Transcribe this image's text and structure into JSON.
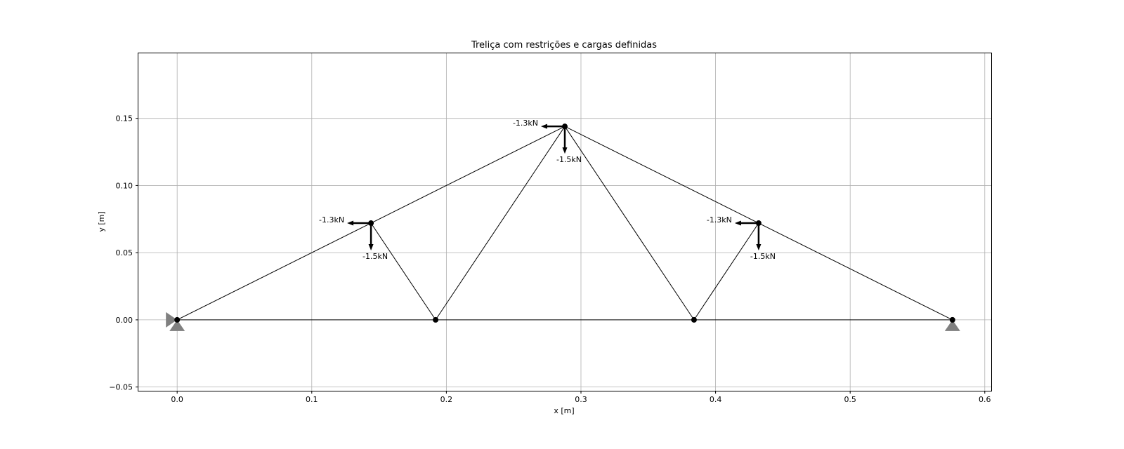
{
  "chart_data": {
    "type": "scatter",
    "title": "Treliça com restrições e cargas definidas",
    "xlabel": "x [m]",
    "ylabel": "y [m]",
    "xlim": [
      -0.0288,
      0.6048
    ],
    "ylim": [
      -0.0528,
      0.1984
    ],
    "grid": true,
    "xticks": [
      0.0,
      0.1,
      0.2,
      0.3,
      0.4,
      0.5,
      0.6
    ],
    "xtick_labels": [
      "0.0",
      "0.1",
      "0.2",
      "0.3",
      "0.4",
      "0.5",
      "0.6"
    ],
    "yticks": [
      -0.05,
      0.0,
      0.05,
      0.1,
      0.15
    ],
    "ytick_labels": [
      "−0.05",
      "0.00",
      "0.05",
      "0.10",
      "0.15"
    ],
    "nodes": [
      {
        "id": 1,
        "x": 0.0,
        "y": 0.0
      },
      {
        "id": 2,
        "x": 0.144,
        "y": 0.072
      },
      {
        "id": 3,
        "x": 0.192,
        "y": 0.0
      },
      {
        "id": 4,
        "x": 0.288,
        "y": 0.144
      },
      {
        "id": 5,
        "x": 0.384,
        "y": 0.0
      },
      {
        "id": 6,
        "x": 0.432,
        "y": 0.072
      },
      {
        "id": 7,
        "x": 0.576,
        "y": 0.0
      }
    ],
    "members": [
      [
        1,
        2
      ],
      [
        2,
        4
      ],
      [
        4,
        6
      ],
      [
        6,
        7
      ],
      [
        1,
        3
      ],
      [
        3,
        5
      ],
      [
        5,
        7
      ],
      [
        2,
        3
      ],
      [
        3,
        4
      ],
      [
        4,
        5
      ],
      [
        5,
        6
      ]
    ],
    "supports": [
      {
        "node": 1,
        "x": true,
        "y": true
      },
      {
        "node": 7,
        "x": false,
        "y": true
      }
    ],
    "loads": [
      {
        "node": 2,
        "fx": -1.3,
        "fy": -1.5,
        "fx_label": "-1.3kN",
        "fy_label": "-1.5kN"
      },
      {
        "node": 4,
        "fx": -1.3,
        "fy": -1.5,
        "fx_label": "-1.3kN",
        "fy_label": "-1.5kN"
      },
      {
        "node": 6,
        "fx": -1.3,
        "fy": -1.5,
        "fx_label": "-1.3kN",
        "fy_label": "-1.5kN"
      }
    ]
  }
}
